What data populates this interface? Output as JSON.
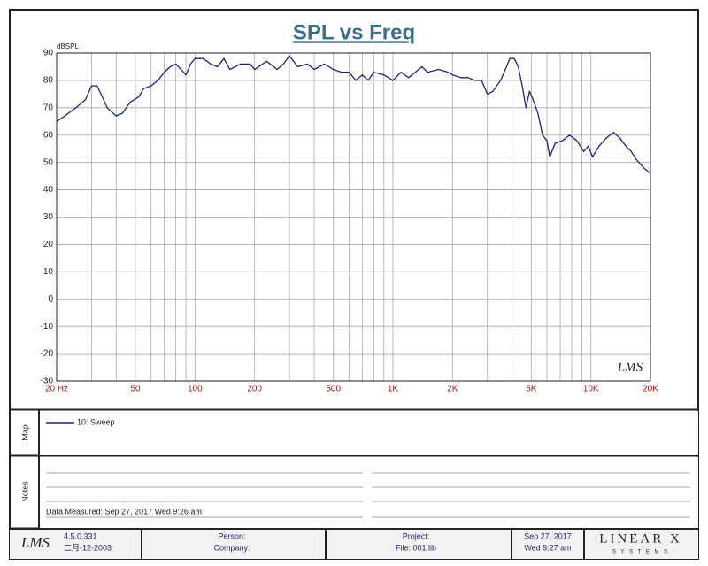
{
  "chart_data": {
    "type": "line",
    "title": "SPL vs Freq",
    "ylabel": "dBSPL",
    "xscale": "log",
    "grid": true,
    "xlim": [
      20,
      20000
    ],
    "ylim": [
      -30,
      90
    ],
    "yticks": [
      -30,
      -20,
      -10,
      0,
      10,
      20,
      30,
      40,
      50,
      60,
      70,
      80,
      90
    ],
    "xticks": [
      {
        "value": 20,
        "label": "20 Hz"
      },
      50,
      100,
      200,
      500,
      {
        "value": 1000,
        "label": "1K"
      },
      {
        "value": 2000,
        "label": "2K"
      },
      {
        "value": 5000,
        "label": "5K"
      },
      {
        "value": 10000,
        "label": "10K"
      },
      {
        "value": 20000,
        "label": "20K"
      }
    ],
    "xminor": [
      30,
      40,
      60,
      70,
      80,
      90,
      300,
      400,
      600,
      700,
      800,
      900,
      3000,
      4000,
      6000,
      7000,
      8000,
      9000
    ],
    "x": [
      20,
      22,
      25,
      28,
      30,
      32,
      34,
      36,
      40,
      43,
      47,
      52,
      55,
      60,
      65,
      70,
      75,
      80,
      85,
      90,
      95,
      100,
      110,
      120,
      130,
      140,
      150,
      170,
      190,
      200,
      230,
      260,
      280,
      300,
      330,
      370,
      400,
      450,
      500,
      550,
      600,
      650,
      700,
      750,
      800,
      900,
      1000,
      1100,
      1200,
      1300,
      1400,
      1500,
      1700,
      1900,
      2000,
      2200,
      2400,
      2600,
      2800,
      3000,
      3200,
      3500,
      3700,
      3900,
      4100,
      4300,
      4500,
      4700,
      4900,
      5100,
      5400,
      5700,
      6000,
      6200,
      6600,
      7200,
      7800,
      8500,
      9200,
      9700,
      10200,
      11000,
      12000,
      13000,
      14000,
      15000,
      16000,
      17000,
      18500,
      20000
    ],
    "series": [
      {
        "name": "10: Sweep",
        "color": "#1c2570",
        "values": [
          65,
          67,
          70,
          73,
          78,
          78,
          74,
          70,
          67,
          68,
          72,
          74,
          77,
          78,
          80,
          83,
          85,
          86,
          84,
          82,
          86,
          88,
          88,
          86,
          85,
          88,
          84,
          86,
          86,
          84,
          87,
          84,
          86,
          89,
          85,
          86,
          84,
          86,
          84,
          83,
          83,
          80,
          82,
          80,
          83,
          82,
          80,
          83,
          81,
          83,
          85,
          83,
          84,
          83,
          82,
          81,
          81,
          80,
          80,
          75,
          76,
          80,
          84,
          88,
          88,
          85,
          78,
          70,
          76,
          73,
          68,
          60,
          58,
          52,
          57,
          58,
          60,
          58,
          54,
          56,
          52,
          56,
          59,
          61,
          59,
          56,
          54,
          51,
          48,
          46
        ]
      }
    ],
    "watermark": "LMS"
  },
  "map": {
    "label": "Map"
  },
  "notes": {
    "label": "Notes",
    "measured": "Data Measured: Sep 27, 2017  Wed  9:26 am"
  },
  "footer": {
    "logo": "LMS",
    "version": "4.5.0.331",
    "build_date": "二月-12-2003",
    "person": "Person:",
    "company": "Company:",
    "project": "Project:",
    "file": "File: 001.lib",
    "date": "Sep 27, 2017",
    "time": "Wed  9:27 am",
    "brand": "LINEAR X",
    "brand_sub": "S Y S T E M S"
  }
}
